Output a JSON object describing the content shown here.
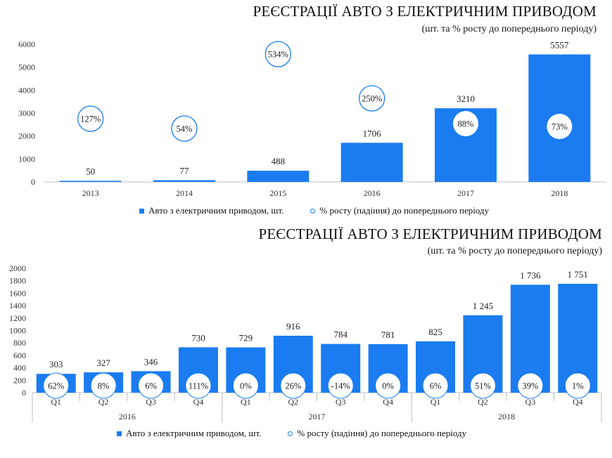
{
  "chart_data": [
    {
      "type": "bar",
      "title": "РЕЄСТРАЦІЇ АВТО З ЕЛЕКТРИЧНИМ ПРИВОДОМ",
      "subtitle": "(шт. та % росту до попереднього  періоду)",
      "categories": [
        "2013",
        "2014",
        "2015",
        "2016",
        "2017",
        "2018"
      ],
      "series": [
        {
          "name": "Авто з електричним приводом, шт.",
          "values": [
            50,
            77,
            488,
            1706,
            3210,
            5557
          ],
          "labels": [
            "50",
            "77",
            "488",
            "1706",
            "3210",
            "5557"
          ]
        },
        {
          "name": "% росту (падіння) до попереднього періоду",
          "values": [
            127,
            54,
            534,
            250,
            88,
            73
          ],
          "labels": [
            "127%",
            "54%",
            "534%",
            "250%",
            "88%",
            "73%"
          ]
        }
      ],
      "ylim": [
        0,
        6000
      ],
      "yticks": [
        "0",
        "1000",
        "2000",
        "3000",
        "4000",
        "5000",
        "6000"
      ],
      "legend_position": "bottom",
      "bar_color": "#1a7cf0"
    },
    {
      "type": "bar",
      "title": "РЕЄСТРАЦІЇ АВТО З ЕЛЕКТРИЧНИМ ПРИВОДОМ",
      "subtitle": "(шт. та % росту до попереднього періоду)",
      "categories": [
        "Q1",
        "Q2",
        "Q3",
        "Q4",
        "Q1",
        "Q2",
        "Q3",
        "Q4",
        "Q1",
        "Q2",
        "Q3",
        "Q4"
      ],
      "groups": [
        "2016",
        "2017",
        "2018"
      ],
      "series": [
        {
          "name": "Авто з електричним  приводом, шт.",
          "values": [
            303,
            327,
            346,
            730,
            729,
            916,
            784,
            781,
            825,
            1245,
            1736,
            1751
          ],
          "labels": [
            "303",
            "327",
            "346",
            "730",
            "729",
            "916",
            "784",
            "781",
            "825",
            "1 245",
            "1 736",
            "1 751"
          ]
        },
        {
          "name": "% росту (падіння) до попереднього періоду",
          "values": [
            62,
            8,
            6,
            111,
            0,
            26,
            -14,
            0,
            6,
            51,
            39,
            1
          ],
          "labels": [
            "62%",
            "8%",
            "6%",
            "111%",
            "0%",
            "26%",
            "-14%",
            "0%",
            "6%",
            "51%",
            "39%",
            "1%"
          ]
        }
      ],
      "ylim": [
        0,
        2000
      ],
      "yticks": [
        "0",
        "200",
        "400",
        "600",
        "800",
        "1000",
        "1200",
        "1400",
        "1600",
        "1800",
        "2000"
      ],
      "legend_position": "bottom",
      "bar_color": "#1a7cf0"
    }
  ]
}
